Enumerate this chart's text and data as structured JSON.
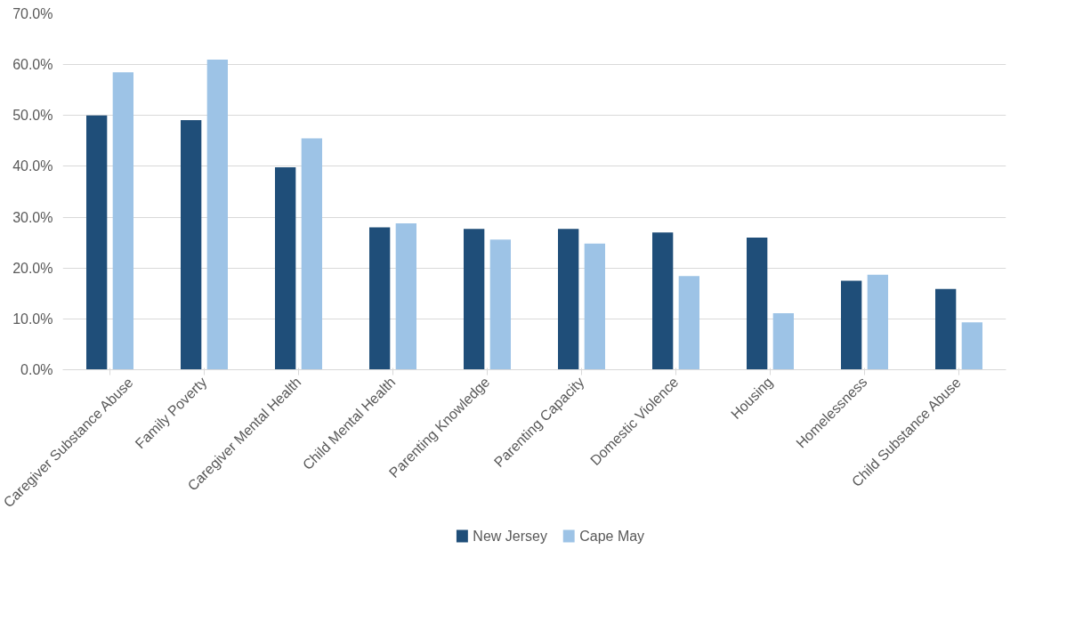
{
  "chart_data": {
    "type": "bar",
    "categories": [
      "Caregiver Substance Abuse",
      "Family Poverty",
      "Caregiver Mental Health",
      "Child Mental Health",
      "Parenting Knowledge",
      "Parenting Capacity",
      "Domestic Violence",
      "Housing",
      "Homelessness",
      "Child Substance Abuse"
    ],
    "series": [
      {
        "name": "New Jersey",
        "color": "#1f4e79",
        "values": [
          50.0,
          49.1,
          39.8,
          28.0,
          27.7,
          27.7,
          27.0,
          26.0,
          17.5,
          15.9
        ]
      },
      {
        "name": "Cape May",
        "color": "#9dc3e6",
        "values": [
          58.5,
          61.0,
          45.5,
          28.8,
          25.6,
          24.8,
          18.4,
          11.1,
          18.7,
          9.3
        ]
      }
    ],
    "ylim": [
      0,
      70
    ],
    "yticks": [
      {
        "value": 0,
        "label": "0.0%"
      },
      {
        "value": 10,
        "label": "10.0%"
      },
      {
        "value": 20,
        "label": "20.0%"
      },
      {
        "value": 30,
        "label": "30.0%"
      },
      {
        "value": 40,
        "label": "40.0%"
      },
      {
        "value": 50,
        "label": "50.0%"
      },
      {
        "value": 60,
        "label": "60.0%"
      },
      {
        "value": 70,
        "label": "70.0%"
      }
    ],
    "grid": "y",
    "legend": "bottom"
  }
}
